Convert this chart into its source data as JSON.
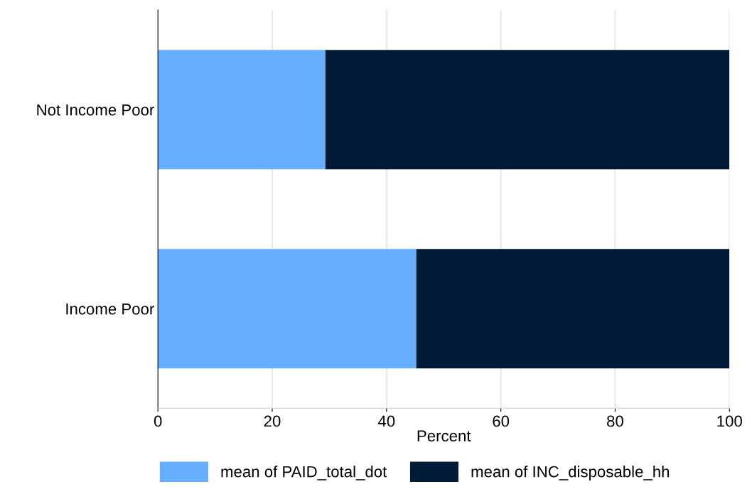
{
  "chart_data": {
    "type": "bar",
    "orientation": "horizontal",
    "stacked": true,
    "xlabel": "Percent",
    "categories": [
      "Not Income Poor",
      "Income Poor"
    ],
    "series": [
      {
        "name": "mean of PAID_total_dot",
        "color": "#66aeff",
        "values": [
          29.3,
          45.2
        ]
      },
      {
        "name": "mean of INC_disposable_hh",
        "color": "#001a38",
        "values": [
          70.7,
          54.8
        ]
      }
    ],
    "xlim": [
      0,
      100
    ],
    "xticks": [
      0,
      20,
      40,
      60,
      80,
      100
    ],
    "grid": "x",
    "legend": "bottom"
  }
}
